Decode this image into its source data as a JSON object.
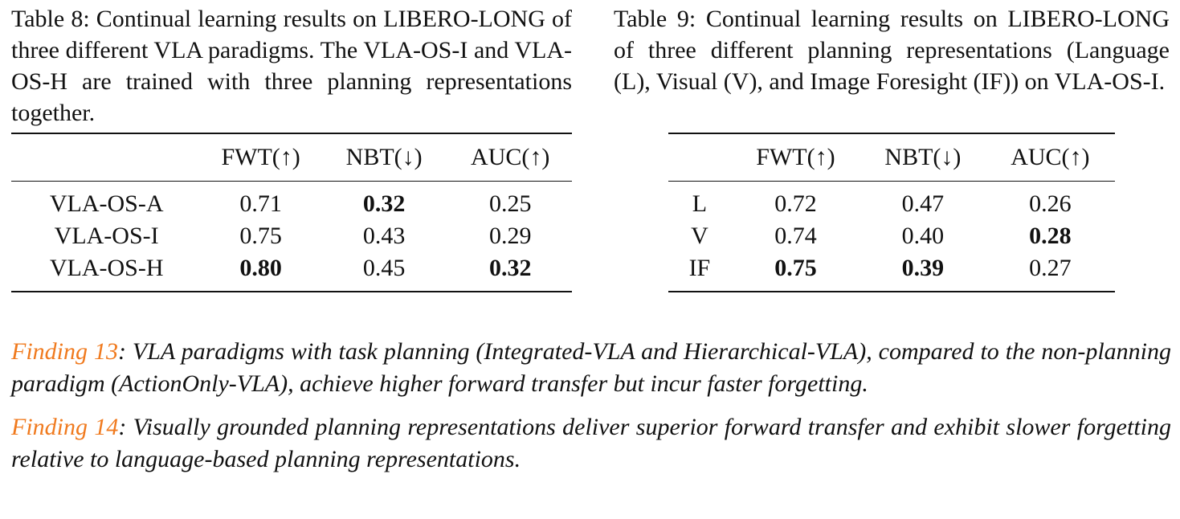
{
  "table8": {
    "caption": "Table 8: Continual learning results on LIBERO-LONG of three different VLA paradigms. The VLA-OS-I and VLA-OS-H are trained with three planning representations together.",
    "columns": [
      "",
      "FWT(↑)",
      "NBT(↓)",
      "AUC(↑)"
    ],
    "rows": [
      {
        "name": "VLA-OS-A",
        "fwt": "0.71",
        "nbt": "0.32",
        "auc": "0.25"
      },
      {
        "name": "VLA-OS-I",
        "fwt": "0.75",
        "nbt": "0.43",
        "auc": "0.29"
      },
      {
        "name": "VLA-OS-H",
        "fwt": "0.80",
        "nbt": "0.45",
        "auc": "0.32"
      }
    ]
  },
  "table9": {
    "caption": "Table 9: Continual learning results on LIBERO-LONG of three different planning representations (Language (L), Visual (V), and Image Foresight (IF)) on VLA-OS-I.",
    "columns": [
      "",
      "FWT(↑)",
      "NBT(↓)",
      "AUC(↑)"
    ],
    "rows": [
      {
        "name": "L",
        "fwt": "0.72",
        "nbt": "0.47",
        "auc": "0.26"
      },
      {
        "name": "V",
        "fwt": "0.74",
        "nbt": "0.40",
        "auc": "0.28"
      },
      {
        "name": "IF",
        "fwt": "0.75",
        "nbt": "0.39",
        "auc": "0.27"
      }
    ]
  },
  "findings": [
    {
      "label": "Finding 13",
      "text": ": VLA paradigms with task planning (Integrated-VLA and Hierarchical-VLA), compared to the non-planning paradigm (ActionOnly-VLA), achieve higher forward transfer but incur faster forgetting."
    },
    {
      "label": "Finding 14",
      "text": ": Visually grounded planning representations deliver superior forward transfer and exhibit slower forgetting relative to language-based planning representations."
    }
  ],
  "colors": {
    "finding_label": "#f07a1e",
    "text": "#111111"
  }
}
